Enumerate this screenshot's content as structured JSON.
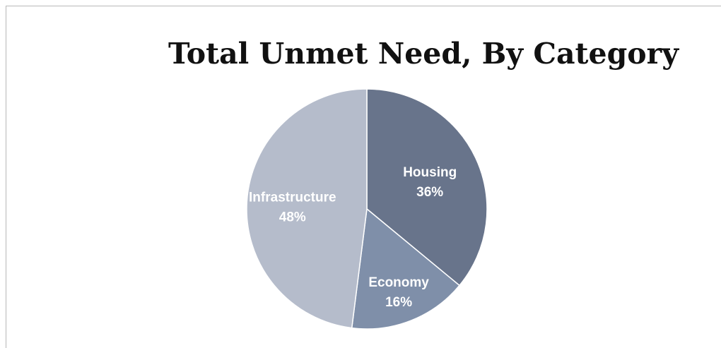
{
  "chart_data": {
    "type": "pie",
    "title": "Total Unmet Need, By Category",
    "slices": [
      {
        "label": "Housing",
        "value": 36,
        "value_label": "36%",
        "color": "#68748b"
      },
      {
        "label": "Economy",
        "value": 16,
        "value_label": "16%",
        "color": "#7f8fa9"
      },
      {
        "label": "Infrastructure",
        "value": 48,
        "value_label": "48%",
        "color": "#b5bccb"
      }
    ],
    "start_angle": "12 o'clock",
    "direction": "clockwise",
    "legend": "none",
    "data_labels": "inside"
  }
}
